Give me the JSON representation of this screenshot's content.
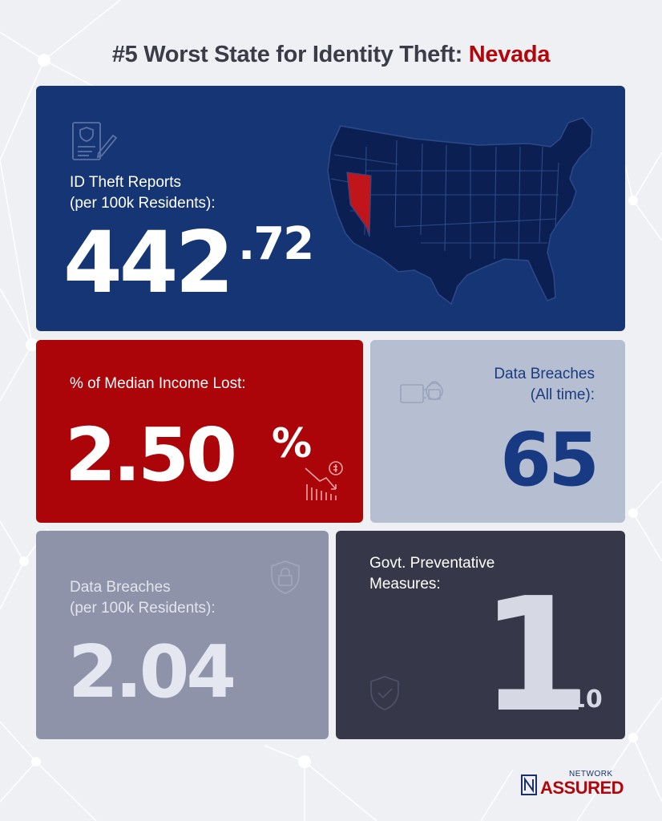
{
  "title": {
    "prefix": "#5 Worst State for Identity Theft: ",
    "state": "Nevada"
  },
  "id_theft": {
    "label_line1": "ID Theft Reports",
    "label_line2": "(per 100k Residents):",
    "value_main": "442",
    "value_decimal": ".72",
    "highlighted_state": "Nevada"
  },
  "income_lost": {
    "label": "% of Median Income Lost:",
    "value": "2.50",
    "unit": "%"
  },
  "breaches_all": {
    "label_line1": "Data Breaches",
    "label_line2": "(All time):",
    "value": "65"
  },
  "breaches_per": {
    "label_line1": "Data Breaches",
    "label_line2": "(per 100k Residents):",
    "value": "2.04"
  },
  "govt": {
    "label_line1": "Govt. Preventative",
    "label_line2": "Measures:",
    "value": "1",
    "out_of": "/10"
  },
  "logo": {
    "small": "NETWORK",
    "big": "ASSURED"
  },
  "colors": {
    "navy": "#153574",
    "red": "#ab0509",
    "light": "#b6bfd2",
    "gray": "#8f93a9",
    "dark": "#363849",
    "nevada": "#c0161b"
  }
}
